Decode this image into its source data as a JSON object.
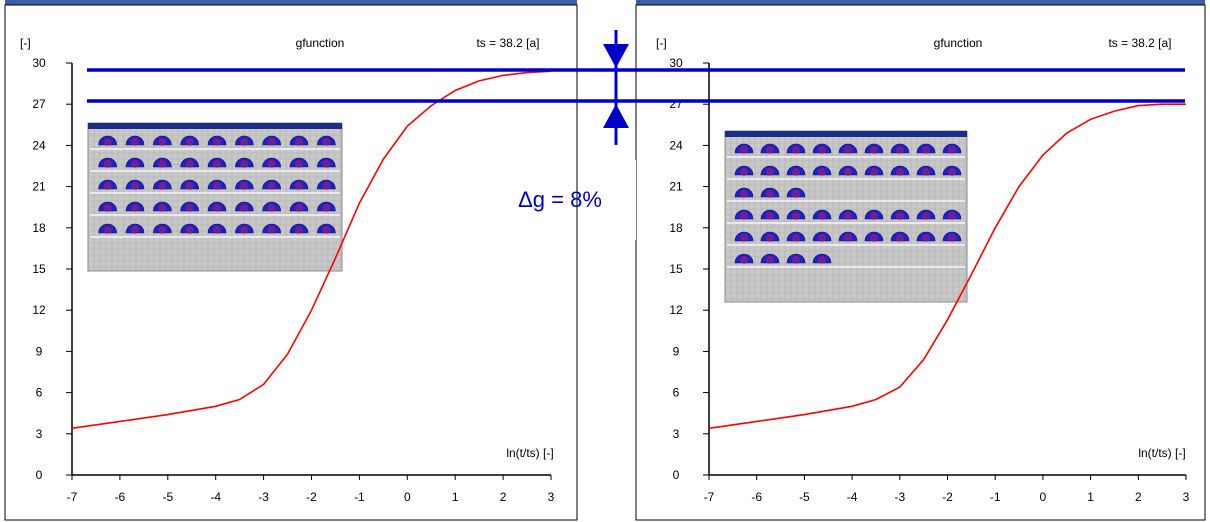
{
  "delta_label": "Δg = 8%",
  "colors": {
    "curve": "#ff0000",
    "reference": "#0000cc",
    "frame": "#000000",
    "title_bar": "#3a5fa8"
  },
  "chart_data": [
    {
      "type": "line",
      "title": "gfunction",
      "subtitle": "ts = 38.2 [a]",
      "ylabel": "[-]",
      "xlabel": "ln(t/ts)  [-]",
      "xlim": [
        -7,
        3
      ],
      "ylim": [
        0,
        30
      ],
      "xticks": [
        "-7",
        "-6",
        "-5",
        "-4",
        "-3",
        "-2",
        "-1",
        "0",
        "1",
        "2",
        "3"
      ],
      "yticks": [
        "0",
        "3",
        "6",
        "9",
        "12",
        "15",
        "18",
        "21",
        "24",
        "27",
        "30"
      ],
      "grid": false,
      "series": [
        {
          "x": [
            -7.0,
            -6.0,
            -5.0,
            -4.0,
            -3.5,
            -3.0,
            -2.5,
            -2.0,
            -1.5,
            -1.0,
            -0.5,
            0.0,
            0.5,
            1.0,
            1.5,
            2.0,
            2.5,
            3.0
          ],
          "y": [
            3.4,
            3.9,
            4.4,
            5.0,
            5.5,
            6.6,
            8.8,
            12.0,
            15.8,
            19.8,
            23.0,
            25.4,
            26.9,
            28.0,
            28.7,
            29.1,
            29.3,
            29.4
          ]
        }
      ],
      "inset": {
        "rows": [
          9,
          9,
          9,
          9,
          9
        ]
      }
    },
    {
      "type": "line",
      "title": "gfunction",
      "subtitle": "ts = 38.2 [a]",
      "ylabel": "[-]",
      "xlabel": "ln(t/ts)  [-]",
      "xlim": [
        -7,
        3
      ],
      "ylim": [
        0,
        30
      ],
      "xticks": [
        "-7",
        "-6",
        "-5",
        "-4",
        "-3",
        "-2",
        "-1",
        "0",
        "1",
        "2",
        "3"
      ],
      "yticks": [
        "0",
        "3",
        "6",
        "9",
        "12",
        "15",
        "18",
        "21",
        "24",
        "27",
        "30"
      ],
      "grid": false,
      "series": [
        {
          "x": [
            -7.0,
            -6.0,
            -5.0,
            -4.0,
            -3.5,
            -3.0,
            -2.5,
            -2.0,
            -1.5,
            -1.0,
            -0.5,
            0.0,
            0.5,
            1.0,
            1.5,
            2.0,
            2.5,
            3.0
          ],
          "y": [
            3.4,
            3.9,
            4.4,
            5.0,
            5.5,
            6.4,
            8.4,
            11.3,
            14.6,
            18.0,
            21.0,
            23.3,
            24.9,
            25.9,
            26.5,
            26.9,
            27.0,
            27.0
          ]
        }
      ],
      "inset": {
        "rows": [
          9,
          9,
          3,
          9,
          9,
          4
        ]
      }
    }
  ]
}
